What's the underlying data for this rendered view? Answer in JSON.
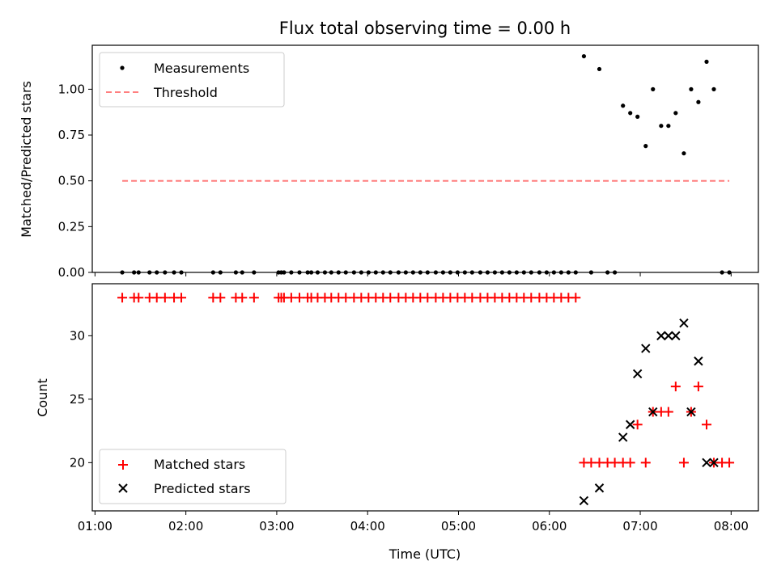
{
  "chart_data": [
    {
      "type": "scatter",
      "title": "Flux total observing time = 0.00 h",
      "xlabel": "",
      "ylabel": "Matched/Predicted stars",
      "xlim": [
        0.97,
        8.3
      ],
      "ylim": [
        0.0,
        1.24
      ],
      "x_ticks": [
        1,
        2,
        3,
        4,
        5,
        6,
        7,
        8
      ],
      "y_ticks": [
        0.0,
        0.25,
        0.5,
        0.75,
        1.0
      ],
      "y_tick_labels": [
        "0.00",
        "0.25",
        "0.50",
        "0.75",
        "1.00"
      ],
      "legend_position": "top-left",
      "legend": {
        "measurements": "Measurements",
        "threshold": "Threshold"
      },
      "colors": {
        "measurements": "#000000",
        "threshold": "#ff7f7f"
      },
      "series": [
        {
          "name": "Measurements",
          "x": [
            1.3,
            1.43,
            1.48,
            1.6,
            1.68,
            1.77,
            1.87,
            1.95,
            2.3,
            2.38,
            2.55,
            2.62,
            2.75,
            3.02,
            3.05,
            3.08,
            3.16,
            3.25,
            3.34,
            3.38,
            3.45,
            3.53,
            3.6,
            3.68,
            3.76,
            3.85,
            3.93,
            4.01,
            4.09,
            4.17,
            4.25,
            4.34,
            4.42,
            4.5,
            4.58,
            4.66,
            4.75,
            4.83,
            4.91,
            4.99,
            5.07,
            5.15,
            5.24,
            5.32,
            5.4,
            5.48,
            5.56,
            5.64,
            5.72,
            5.8,
            5.89,
            5.97,
            6.05,
            6.13,
            6.21,
            6.29,
            6.38,
            6.46,
            6.55,
            6.64,
            6.72,
            6.81,
            6.89,
            6.97,
            7.06,
            7.14,
            7.23,
            7.31,
            7.39,
            7.48,
            7.56,
            7.64,
            7.73,
            7.81,
            7.9,
            7.98
          ],
          "y": [
            0,
            0,
            0,
            0,
            0,
            0,
            0,
            0,
            0,
            0,
            0,
            0,
            0,
            0,
            0,
            0,
            0,
            0,
            0,
            0,
            0,
            0,
            0,
            0,
            0,
            0,
            0,
            0,
            0,
            0,
            0,
            0,
            0,
            0,
            0,
            0,
            0,
            0,
            0,
            0,
            0,
            0,
            0,
            0,
            0,
            0,
            0,
            0,
            0,
            0,
            0,
            0,
            0,
            0,
            0,
            0,
            1.18,
            0,
            1.11,
            0,
            0,
            0.91,
            0.87,
            0.85,
            0.69,
            1.0,
            0.8,
            0.8,
            0.87,
            0.65,
            1.0,
            0.93,
            1.15,
            1.0,
            0,
            0
          ]
        },
        {
          "name": "Threshold",
          "x": [
            1.3,
            7.98
          ],
          "y": [
            0.5,
            0.5
          ]
        }
      ]
    },
    {
      "type": "scatter",
      "title": "",
      "xlabel": "Time (UTC)",
      "ylabel": "Count",
      "xlim": [
        0.97,
        8.3
      ],
      "ylim": [
        16.2,
        34.1
      ],
      "x_ticks": [
        1,
        2,
        3,
        4,
        5,
        6,
        7,
        8
      ],
      "x_tick_labels": [
        "01:00",
        "02:00",
        "03:00",
        "04:00",
        "05:00",
        "06:00",
        "07:00",
        "08:00"
      ],
      "y_ticks": [
        20,
        25,
        30
      ],
      "y_tick_labels": [
        "20",
        "25",
        "30"
      ],
      "legend_position": "bottom-left",
      "legend": {
        "matched": "Matched stars",
        "predicted": "Predicted stars"
      },
      "colors": {
        "matched": "#ff0000",
        "predicted": "#000000"
      },
      "series": [
        {
          "name": "Matched stars",
          "x": [
            1.3,
            1.43,
            1.48,
            1.6,
            1.68,
            1.77,
            1.87,
            1.95,
            2.3,
            2.38,
            2.55,
            2.62,
            2.75,
            3.02,
            3.05,
            3.08,
            3.16,
            3.25,
            3.34,
            3.38,
            3.45,
            3.53,
            3.6,
            3.68,
            3.76,
            3.85,
            3.93,
            4.01,
            4.09,
            4.17,
            4.25,
            4.34,
            4.42,
            4.5,
            4.58,
            4.66,
            4.75,
            4.83,
            4.91,
            4.99,
            5.07,
            5.15,
            5.24,
            5.32,
            5.4,
            5.48,
            5.56,
            5.64,
            5.72,
            5.8,
            5.89,
            5.97,
            6.05,
            6.13,
            6.21,
            6.29,
            6.38,
            6.46,
            6.55,
            6.64,
            6.72,
            6.81,
            6.89,
            6.97,
            7.06,
            7.14,
            7.23,
            7.31,
            7.39,
            7.48,
            7.56,
            7.64,
            7.73,
            7.81,
            7.9,
            7.98
          ],
          "y": [
            33,
            33,
            33,
            33,
            33,
            33,
            33,
            33,
            33,
            33,
            33,
            33,
            33,
            33,
            33,
            33,
            33,
            33,
            33,
            33,
            33,
            33,
            33,
            33,
            33,
            33,
            33,
            33,
            33,
            33,
            33,
            33,
            33,
            33,
            33,
            33,
            33,
            33,
            33,
            33,
            33,
            33,
            33,
            33,
            33,
            33,
            33,
            33,
            33,
            33,
            33,
            33,
            33,
            33,
            33,
            33,
            20,
            20,
            20,
            20,
            20,
            20,
            20,
            23,
            20,
            24,
            24,
            24,
            26,
            20,
            24,
            26,
            23,
            20,
            20,
            20
          ]
        },
        {
          "name": "Predicted stars",
          "x": [
            6.38,
            6.55,
            6.81,
            6.89,
            6.97,
            7.06,
            7.14,
            7.23,
            7.31,
            7.39,
            7.48,
            7.56,
            7.64,
            7.73,
            7.81
          ],
          "y": [
            17,
            18,
            22,
            23,
            27,
            29,
            24,
            30,
            30,
            30,
            31,
            24,
            28,
            20,
            20
          ]
        }
      ]
    }
  ]
}
